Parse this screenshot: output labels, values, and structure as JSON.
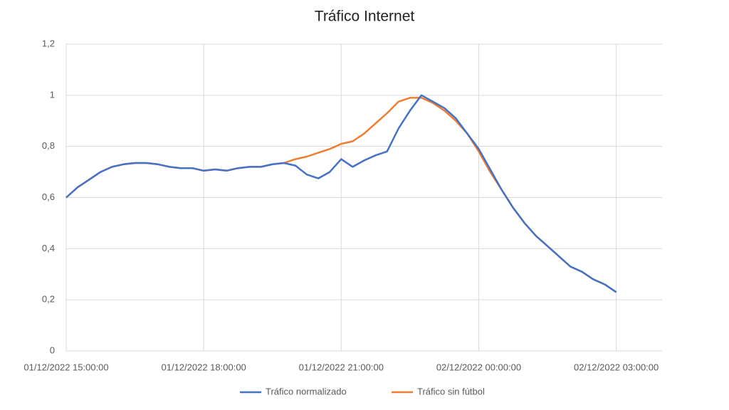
{
  "chart_data": {
    "type": "line",
    "title": "Tráfico Internet",
    "x": [
      "01/12/2022 15:00:00",
      "01/12/2022 15:15:00",
      "01/12/2022 15:30:00",
      "01/12/2022 15:45:00",
      "01/12/2022 16:00:00",
      "01/12/2022 16:15:00",
      "01/12/2022 16:30:00",
      "01/12/2022 16:45:00",
      "01/12/2022 17:00:00",
      "01/12/2022 17:15:00",
      "01/12/2022 17:30:00",
      "01/12/2022 17:45:00",
      "01/12/2022 18:00:00",
      "01/12/2022 18:15:00",
      "01/12/2022 18:30:00",
      "01/12/2022 18:45:00",
      "01/12/2022 19:00:00",
      "01/12/2022 19:15:00",
      "01/12/2022 19:30:00",
      "01/12/2022 19:45:00",
      "01/12/2022 20:00:00",
      "01/12/2022 20:15:00",
      "01/12/2022 20:30:00",
      "01/12/2022 20:45:00",
      "01/12/2022 21:00:00",
      "01/12/2022 21:15:00",
      "01/12/2022 21:30:00",
      "01/12/2022 21:45:00",
      "01/12/2022 22:00:00",
      "01/12/2022 22:15:00",
      "01/12/2022 22:30:00",
      "01/12/2022 22:45:00",
      "01/12/2022 23:00:00",
      "01/12/2022 23:15:00",
      "01/12/2022 23:30:00",
      "01/12/2022 23:45:00",
      "02/12/2022 00:00:00",
      "02/12/2022 00:15:00",
      "02/12/2022 00:30:00",
      "02/12/2022 00:45:00",
      "02/12/2022 01:00:00",
      "02/12/2022 01:15:00",
      "02/12/2022 01:30:00",
      "02/12/2022 01:45:00",
      "02/12/2022 02:00:00",
      "02/12/2022 02:15:00",
      "02/12/2022 02:30:00",
      "02/12/2022 02:45:00",
      "02/12/2022 03:00:00"
    ],
    "series": [
      {
        "name": "Tráfico normalizado",
        "color": "#4472c4",
        "values": [
          0.6,
          0.64,
          0.67,
          0.7,
          0.72,
          0.73,
          0.735,
          0.735,
          0.73,
          0.72,
          0.715,
          0.715,
          0.705,
          0.71,
          0.705,
          0.715,
          0.72,
          0.72,
          0.73,
          0.735,
          0.725,
          0.69,
          0.675,
          0.7,
          0.75,
          0.72,
          0.745,
          0.765,
          0.78,
          0.87,
          0.94,
          1.0,
          0.975,
          0.95,
          0.91,
          0.85,
          0.79,
          0.71,
          0.63,
          0.56,
          0.5,
          0.45,
          0.41,
          0.37,
          0.33,
          0.31,
          0.28,
          0.26,
          0.23
        ]
      },
      {
        "name": "Tráfico sin fútbol",
        "color": "#ed7d31",
        "values": [
          0.6,
          0.64,
          0.67,
          0.7,
          0.72,
          0.73,
          0.735,
          0.735,
          0.73,
          0.72,
          0.715,
          0.715,
          0.705,
          0.71,
          0.705,
          0.715,
          0.72,
          0.72,
          0.73,
          0.735,
          0.75,
          0.76,
          0.775,
          0.79,
          0.81,
          0.82,
          0.85,
          0.89,
          0.93,
          0.975,
          0.99,
          0.99,
          0.97,
          0.94,
          0.9,
          0.85,
          0.78,
          0.7,
          0.63,
          0.56,
          0.5,
          0.45,
          0.41,
          0.37,
          0.33,
          0.31,
          0.28,
          0.26,
          0.23
        ]
      }
    ],
    "xlim": [
      "01/12/2022 15:00:00",
      "02/12/2022 04:00:00"
    ],
    "xticks": [
      "01/12/2022 15:00:00",
      "01/12/2022 18:00:00",
      "01/12/2022 21:00:00",
      "02/12/2022 00:00:00",
      "02/12/2022 03:00:00"
    ],
    "ylim": [
      0,
      1.2
    ],
    "yticks": [
      0,
      {
        "value": 0.2,
        "label": "0,2"
      },
      {
        "value": 0.4,
        "label": "0,4"
      },
      {
        "value": 0.6,
        "label": "0,6"
      },
      {
        "value": 0.8,
        "label": "0,8"
      },
      1,
      {
        "value": 1.2,
        "label": "1,2"
      }
    ],
    "grid": true,
    "legend": "bottom"
  }
}
